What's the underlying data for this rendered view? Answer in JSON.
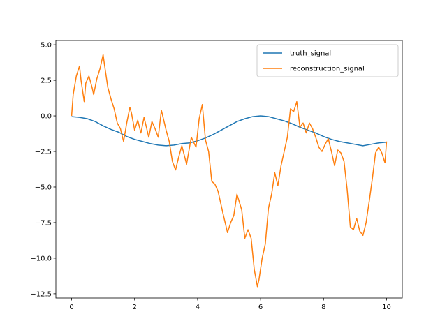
{
  "chart_data": {
    "type": "line",
    "title": "",
    "xlabel": "",
    "ylabel": "",
    "xlim": [
      -0.5,
      10.5
    ],
    "ylim": [
      -12.8,
      5.3
    ],
    "xticks": [
      0,
      2,
      4,
      6,
      8,
      10
    ],
    "xtick_labels": [
      "0",
      "2",
      "4",
      "6",
      "8",
      "10"
    ],
    "yticks": [
      5.0,
      2.5,
      0.0,
      -2.5,
      -5.0,
      -7.5,
      -10.0,
      -12.5
    ],
    "ytick_labels": [
      "5.0",
      "2.5",
      "0.0",
      "−2.5",
      "−5.0",
      "−7.5",
      "−10.0",
      "−12.5"
    ],
    "grid": false,
    "legend": "top-right",
    "series": [
      {
        "name": "truth_signal",
        "color": "#1f77b4",
        "x": [
          0,
          0.25,
          0.5,
          0.75,
          1.0,
          1.25,
          1.5,
          1.75,
          2.0,
          2.25,
          2.5,
          2.75,
          3.0,
          3.25,
          3.5,
          3.75,
          4.0,
          4.25,
          4.5,
          4.75,
          5.0,
          5.25,
          5.5,
          5.75,
          6.0,
          6.25,
          6.5,
          6.75,
          7.0,
          7.25,
          7.5,
          7.75,
          8.0,
          8.25,
          8.5,
          8.75,
          9.0,
          9.25,
          9.5,
          9.75,
          10.0
        ],
        "y": [
          -0.05,
          -0.1,
          -0.2,
          -0.4,
          -0.7,
          -0.95,
          -1.15,
          -1.45,
          -1.65,
          -1.8,
          -1.95,
          -2.05,
          -2.1,
          -2.05,
          -1.95,
          -1.9,
          -1.75,
          -1.55,
          -1.3,
          -1.0,
          -0.7,
          -0.4,
          -0.2,
          -0.05,
          0.0,
          -0.05,
          -0.2,
          -0.35,
          -0.55,
          -0.8,
          -1.0,
          -1.2,
          -1.45,
          -1.65,
          -1.8,
          -1.9,
          -2.0,
          -2.1,
          -2.0,
          -1.9,
          -1.85
        ]
      },
      {
        "name": "reconstruction_signal",
        "color": "#ff7f0e",
        "x": [
          0,
          0.05,
          0.15,
          0.25,
          0.3,
          0.4,
          0.45,
          0.55,
          0.65,
          0.7,
          0.8,
          0.9,
          1.0,
          1.05,
          1.15,
          1.25,
          1.35,
          1.45,
          1.55,
          1.65,
          1.75,
          1.85,
          1.9,
          2.0,
          2.1,
          2.2,
          2.3,
          2.45,
          2.55,
          2.65,
          2.75,
          2.85,
          3.0,
          3.1,
          3.2,
          3.3,
          3.4,
          3.5,
          3.65,
          3.8,
          3.95,
          4.05,
          4.15,
          4.25,
          4.35,
          4.45,
          4.55,
          4.65,
          4.8,
          4.95,
          5.05,
          5.15,
          5.25,
          5.4,
          5.5,
          5.6,
          5.7,
          5.8,
          5.9,
          5.95,
          6.05,
          6.15,
          6.25,
          6.35,
          6.45,
          6.55,
          6.65,
          6.75,
          6.85,
          6.95,
          7.05,
          7.15,
          7.25,
          7.35,
          7.45,
          7.55,
          7.65,
          7.75,
          7.85,
          7.95,
          8.05,
          8.15,
          8.25,
          8.35,
          8.45,
          8.55,
          8.65,
          8.75,
          8.85,
          8.95,
          9.05,
          9.15,
          9.25,
          9.35,
          9.45,
          9.55,
          9.65,
          9.75,
          9.85,
          9.95,
          10.0
        ],
        "y": [
          0.0,
          1.5,
          2.8,
          3.5,
          2.5,
          1.0,
          2.3,
          2.8,
          2.0,
          1.5,
          2.6,
          3.3,
          4.3,
          3.5,
          2.0,
          1.2,
          0.5,
          -0.5,
          -0.9,
          -1.8,
          -0.5,
          0.6,
          0.2,
          -1.0,
          -0.3,
          -1.2,
          -0.1,
          -1.5,
          -0.4,
          -0.9,
          -1.5,
          0.4,
          -1.0,
          -1.8,
          -3.2,
          -3.8,
          -2.9,
          -2.1,
          -3.4,
          -1.5,
          -2.2,
          -0.2,
          0.8,
          -1.7,
          -2.5,
          -4.6,
          -4.8,
          -5.3,
          -6.8,
          -8.2,
          -7.5,
          -7.0,
          -5.5,
          -6.6,
          -8.6,
          -8.0,
          -8.6,
          -10.8,
          -12.0,
          -11.5,
          -10.0,
          -9.0,
          -6.5,
          -5.5,
          -4.0,
          -4.9,
          -3.5,
          -2.5,
          -1.5,
          0.5,
          0.3,
          1.0,
          -0.8,
          -0.5,
          -1.2,
          -0.5,
          -0.9,
          -1.5,
          -2.2,
          -2.5,
          -2.0,
          -1.6,
          -2.5,
          -3.5,
          -2.4,
          -2.6,
          -3.2,
          -5.2,
          -7.8,
          -8.0,
          -7.2,
          -8.1,
          -8.4,
          -7.5,
          -6.0,
          -4.4,
          -2.6,
          -2.2,
          -2.6,
          -3.3,
          -1.8
        ]
      }
    ]
  }
}
